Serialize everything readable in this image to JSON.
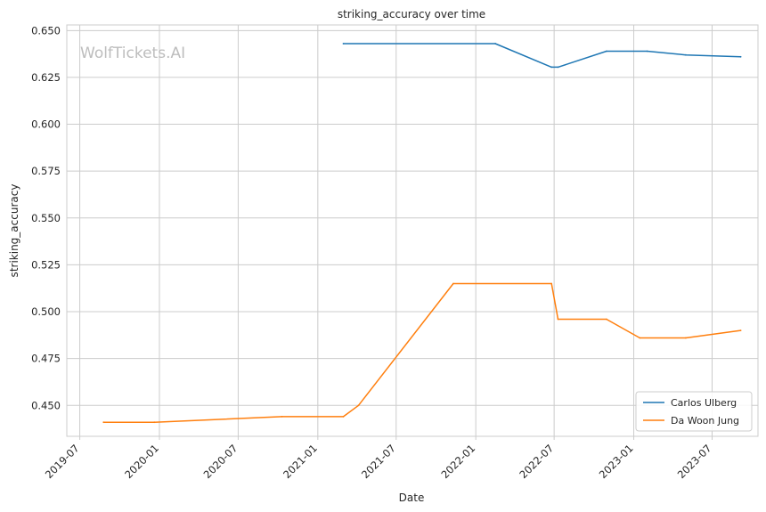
{
  "chart_data": {
    "type": "line",
    "title": "striking_accuracy over time",
    "xlabel": "Date",
    "ylabel": "striking_accuracy",
    "watermark": "WolfTickets.AI",
    "x_ticks": [
      "2019-07",
      "2020-01",
      "2020-07",
      "2021-01",
      "2021-07",
      "2022-01",
      "2022-07",
      "2023-01",
      "2023-07"
    ],
    "y_ticks": [
      "0.450",
      "0.475",
      "0.500",
      "0.525",
      "0.550",
      "0.575",
      "0.600",
      "0.625",
      "0.650"
    ],
    "ylim": [
      0.4335,
      0.653
    ],
    "xlim": [
      "2019-06-01",
      "2023-10-15"
    ],
    "grid": true,
    "legend_position": "bottom-right",
    "series": [
      {
        "name": "Carlos Ulberg",
        "color": "#1f77b4",
        "points": [
          {
            "x": "2021-03-01",
            "y": 0.643
          },
          {
            "x": "2022-02-15",
            "y": 0.643
          },
          {
            "x": "2022-06-25",
            "y": 0.6305
          },
          {
            "x": "2022-07-10",
            "y": 0.6305
          },
          {
            "x": "2022-10-30",
            "y": 0.639
          },
          {
            "x": "2023-02-01",
            "y": 0.639
          },
          {
            "x": "2023-05-01",
            "y": 0.637
          },
          {
            "x": "2023-09-05",
            "y": 0.636
          }
        ]
      },
      {
        "name": "Da Woon Jung",
        "color": "#ff7f0e",
        "points": [
          {
            "x": "2019-08-25",
            "y": 0.441
          },
          {
            "x": "2019-12-20",
            "y": 0.441
          },
          {
            "x": "2020-10-10",
            "y": 0.444
          },
          {
            "x": "2021-03-01",
            "y": 0.444
          },
          {
            "x": "2021-04-05",
            "y": 0.45
          },
          {
            "x": "2021-11-10",
            "y": 0.515
          },
          {
            "x": "2022-06-25",
            "y": 0.515
          },
          {
            "x": "2022-07-10",
            "y": 0.496
          },
          {
            "x": "2022-10-30",
            "y": 0.496
          },
          {
            "x": "2023-01-15",
            "y": 0.486
          },
          {
            "x": "2023-05-01",
            "y": 0.486
          },
          {
            "x": "2023-09-05",
            "y": 0.49
          }
        ]
      }
    ]
  }
}
